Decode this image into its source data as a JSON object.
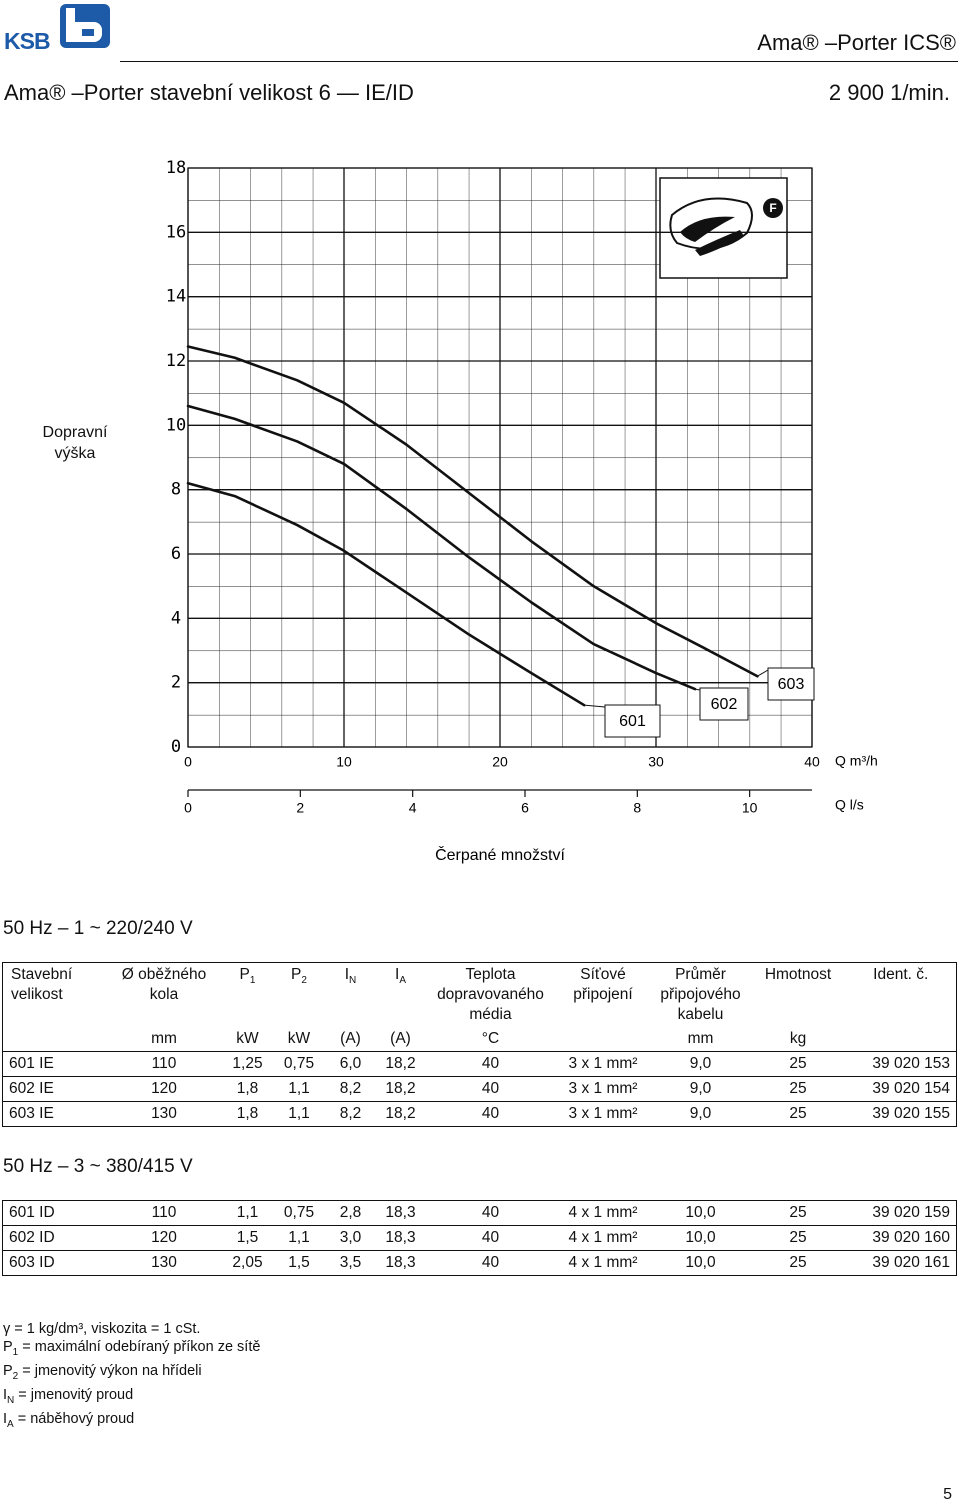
{
  "header": {
    "logo": "KSB",
    "product": "Ama® –Porter ICS®"
  },
  "title": {
    "left": "Ama® –Porter stavební velikost 6 — IE/ID",
    "right": "2 900 1/min."
  },
  "chart_data": {
    "type": "line",
    "y_label": "Dopravní výška",
    "x_label": "Q m³/h",
    "x2_label": "Q l/s",
    "x_title": "Čerpané množství",
    "inset_label": "F",
    "xlim": [
      0,
      40
    ],
    "xticks": [
      0,
      10,
      20,
      30,
      40
    ],
    "x2lim": [
      0,
      11.11
    ],
    "x2ticks": [
      0,
      2,
      4,
      6,
      8,
      10
    ],
    "ylim": [
      0,
      18
    ],
    "yticks": [
      0,
      2,
      4,
      6,
      8,
      10,
      12,
      14,
      16,
      18
    ],
    "grid": true,
    "series": [
      {
        "name": "601",
        "color": "#111111",
        "x": [
          0,
          3,
          7,
          10,
          14,
          18,
          22,
          25.4
        ],
        "values": [
          8.2,
          7.8,
          6.9,
          6.1,
          4.8,
          3.5,
          2.3,
          1.3
        ]
      },
      {
        "name": "602",
        "color": "#111111",
        "x": [
          0,
          3,
          7,
          10,
          14,
          18,
          22,
          26,
          30,
          32.5
        ],
        "values": [
          10.6,
          10.2,
          9.5,
          8.8,
          7.4,
          5.9,
          4.5,
          3.2,
          2.3,
          1.8
        ]
      },
      {
        "name": "603",
        "color": "#111111",
        "x": [
          0,
          3,
          7,
          10,
          14,
          18,
          22,
          26,
          30,
          33,
          36.5
        ],
        "values": [
          12.45,
          12.1,
          11.4,
          10.7,
          9.4,
          7.9,
          6.4,
          5.0,
          3.85,
          3.1,
          2.2
        ]
      }
    ]
  },
  "table_columns": [
    {
      "label": "Stavební velikost"
    },
    {
      "label": "Ø oběžného kola",
      "unit": "mm"
    },
    {
      "label": "P",
      "sub": "1",
      "unit": "kW"
    },
    {
      "label": "P",
      "sub": "2",
      "unit": "kW"
    },
    {
      "label": "I",
      "sub": "N",
      "unit": "(A)"
    },
    {
      "label": "I",
      "sub": "A",
      "unit": "(A)"
    },
    {
      "label": "Teplota dopravovaného média",
      "unit": "°C"
    },
    {
      "label": "Síťové připojení"
    },
    {
      "label": "Průměr připojového kabelu",
      "unit": "mm"
    },
    {
      "label": "Hmotnost",
      "unit": "kg"
    },
    {
      "label": "Ident. č."
    }
  ],
  "tables": [
    {
      "heading": "50 Hz – 1 ~ 220/240 V",
      "rows": [
        [
          "601 IE",
          "110",
          "1,25",
          "0,75",
          "6,0",
          "18,2",
          "40",
          "3 x 1 mm²",
          "9,0",
          "25",
          "39 020 153"
        ],
        [
          "602 IE",
          "120",
          "1,8",
          "1,1",
          "8,2",
          "18,2",
          "40",
          "3 x 1 mm²",
          "9,0",
          "25",
          "39 020 154"
        ],
        [
          "603 IE",
          "130",
          "1,8",
          "1,1",
          "8,2",
          "18,2",
          "40",
          "3 x 1 mm²",
          "9,0",
          "25",
          "39 020 155"
        ]
      ]
    },
    {
      "heading": "50 Hz – 3 ~ 380/415 V",
      "rows": [
        [
          "601 ID",
          "110",
          "1,1",
          "0,75",
          "2,8",
          "18,3",
          "40",
          "4 x 1 mm²",
          "10,0",
          "25",
          "39 020 159"
        ],
        [
          "602 ID",
          "120",
          "1,5",
          "1,1",
          "3,0",
          "18,3",
          "40",
          "4 x 1 mm²",
          "10,0",
          "25",
          "39 020 160"
        ],
        [
          "603 ID",
          "130",
          "2,05",
          "1,5",
          "3,5",
          "18,3",
          "40",
          "4 x 1 mm²",
          "10,0",
          "25",
          "39 020 161"
        ]
      ]
    }
  ],
  "footnotes": [
    {
      "text": "γ = 1 kg/dm³, viskozita = 1 cSt."
    },
    {
      "symbol": "P",
      "sub": "1",
      "text": "= maximální odebíraný příkon ze sítě"
    },
    {
      "symbol": "P",
      "sub": "2",
      "text": "= jmenovitý výkon na hřídeli"
    },
    {
      "symbol": "I",
      "sub": "N",
      "text": "= jmenovitý proud"
    },
    {
      "symbol": "I",
      "sub": "A",
      "text": "= náběhový proud"
    }
  ],
  "page_number": "5"
}
